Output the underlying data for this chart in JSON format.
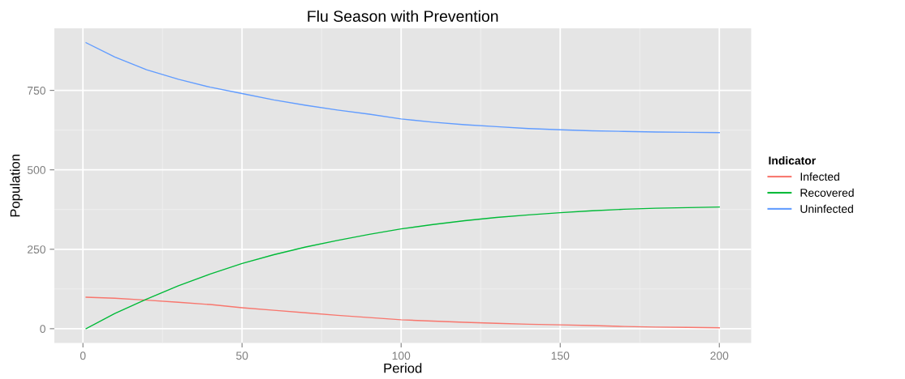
{
  "chart_data": {
    "type": "line",
    "title": "Flu Season with Prevention",
    "xlabel": "Period",
    "ylabel": "Population",
    "legend_title": "Indicator",
    "x": [
      1,
      10,
      20,
      30,
      40,
      50,
      60,
      70,
      80,
      90,
      100,
      110,
      120,
      130,
      140,
      150,
      160,
      170,
      180,
      190,
      200
    ],
    "series": [
      {
        "name": "Infected",
        "color": "#f8766d",
        "values": [
          99,
          96,
          90,
          83,
          76,
          66,
          58,
          50,
          42,
          35,
          28,
          24,
          20,
          17,
          14,
          12,
          10,
          7,
          5,
          4,
          3
        ]
      },
      {
        "name": "Recovered",
        "color": "#00ba38",
        "values": [
          0,
          48,
          93,
          135,
          172,
          205,
          233,
          257,
          278,
          297,
          314,
          328,
          340,
          350,
          358,
          365,
          371,
          376,
          379,
          381,
          383
        ]
      },
      {
        "name": "Uninfected",
        "color": "#619cff",
        "values": [
          900,
          855,
          815,
          785,
          760,
          740,
          720,
          703,
          688,
          675,
          660,
          650,
          642,
          636,
          630,
          626,
          623,
          621,
          619,
          618,
          617
        ]
      }
    ],
    "xlim": [
      -9,
      210
    ],
    "ylim": [
      -45,
      945
    ],
    "xticks": [
      0,
      50,
      100,
      150,
      200
    ],
    "yticks": [
      0,
      250,
      500,
      750
    ],
    "grid": true,
    "legend": "right",
    "line_style": "solid",
    "marker": "none"
  }
}
